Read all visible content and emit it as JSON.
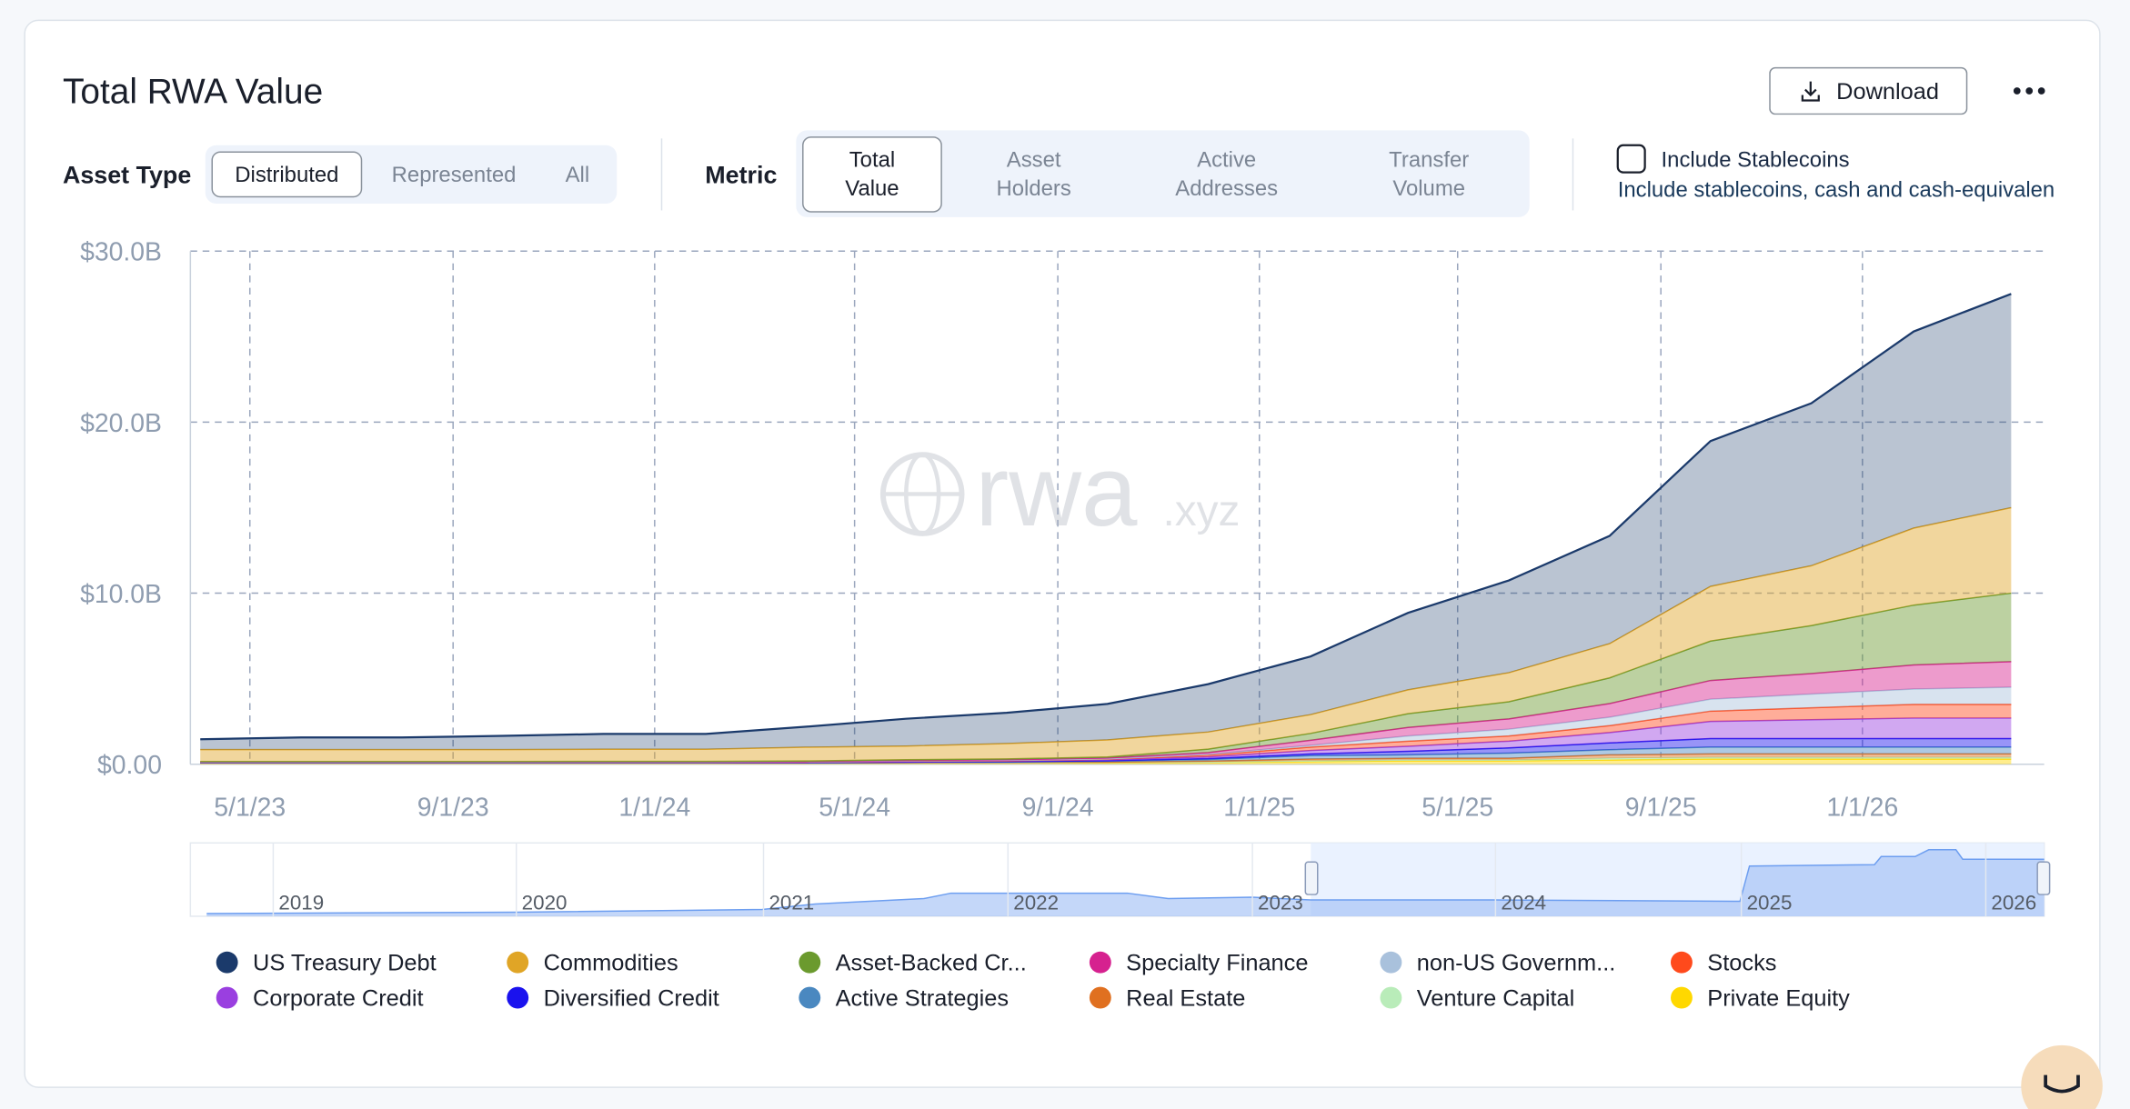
{
  "header": {
    "title": "Total RWA Value",
    "download": "Download"
  },
  "filters": {
    "asset_type_label": "Asset Type",
    "asset_type_options": [
      "Distributed",
      "Represented",
      "All"
    ],
    "metric_label": "Metric",
    "metric_options": [
      [
        "Total",
        "Value"
      ],
      [
        "Asset",
        "Holders"
      ],
      [
        "Active",
        "Addresses"
      ],
      [
        "Transfer",
        "Volume"
      ]
    ],
    "stablecoin_label": "Include Stablecoins",
    "stablecoin_note": "Include stablecoins, cash and cash-equivalen"
  },
  "watermark": {
    "main": "rwa",
    "suffix": ".xyz"
  },
  "navigator_labels": [
    "2019",
    "2020",
    "2021",
    "2022",
    "2023",
    "2024",
    "2025",
    "2026"
  ],
  "chart_data": {
    "type": "stacked_area",
    "x": [
      "2023-04-01",
      "2023-06-01",
      "2023-08-01",
      "2023-10-01",
      "2023-12-01",
      "2024-02-01",
      "2024-04-01",
      "2024-06-01",
      "2024-08-01",
      "2024-10-01",
      "2024-12-01",
      "2025-02-01",
      "2025-04-01",
      "2025-06-01",
      "2025-08-01",
      "2025-10-01",
      "2025-12-01",
      "2026-02-01",
      "2026-04-01"
    ],
    "xlim": [
      "2023-03-26",
      "2026-04-21"
    ],
    "xticks": [
      {
        "value": "2023-05-01",
        "label": "5/1/23"
      },
      {
        "value": "2023-09-01",
        "label": "9/1/23"
      },
      {
        "value": "2024-01-01",
        "label": "1/1/24"
      },
      {
        "value": "2024-05-01",
        "label": "5/1/24"
      },
      {
        "value": "2024-09-01",
        "label": "9/1/24"
      },
      {
        "value": "2025-01-01",
        "label": "1/1/25"
      },
      {
        "value": "2025-05-01",
        "label": "5/1/25"
      },
      {
        "value": "2025-09-01",
        "label": "9/1/25"
      },
      {
        "value": "2026-01-01",
        "label": "1/1/26"
      }
    ],
    "ylim": [
      0,
      30
    ],
    "yticks": [
      {
        "value": 0,
        "label": "$0.00"
      },
      {
        "value": 10,
        "label": "$10.0B"
      },
      {
        "value": 20,
        "label": "$20.0B"
      },
      {
        "value": 30,
        "label": "$30.0B"
      }
    ],
    "grid": true,
    "series": [
      {
        "name": "US Treasury Debt",
        "color": "#1b3a6b",
        "values": [
          0.6,
          0.7,
          0.7,
          0.8,
          0.9,
          0.9,
          1.2,
          1.6,
          1.8,
          2.1,
          2.8,
          3.4,
          4.5,
          5.4,
          6.3,
          8.5,
          9.5,
          11.5,
          12.5
        ]
      },
      {
        "name": "Commodities",
        "color": "#e0a526",
        "values": [
          0.7,
          0.7,
          0.7,
          0.7,
          0.7,
          0.7,
          0.8,
          0.8,
          0.9,
          1.0,
          1.0,
          1.1,
          1.4,
          1.7,
          2.0,
          3.2,
          3.5,
          4.5,
          5.0
        ]
      },
      {
        "name": "Asset-Backed Cr...",
        "color": "#6b9a2e",
        "values": [
          0.02,
          0.02,
          0.02,
          0.02,
          0.03,
          0.03,
          0.03,
          0.04,
          0.05,
          0.05,
          0.2,
          0.4,
          0.8,
          1.0,
          1.5,
          2.3,
          2.8,
          3.5,
          4.0
        ]
      },
      {
        "name": "Specialty Finance",
        "color": "#d6218f",
        "values": [
          0.01,
          0.01,
          0.01,
          0.01,
          0.01,
          0.01,
          0.02,
          0.02,
          0.03,
          0.05,
          0.1,
          0.3,
          0.5,
          0.6,
          0.8,
          1.1,
          1.2,
          1.4,
          1.5
        ]
      },
      {
        "name": "non-US Governm...",
        "color": "#a9c1dc",
        "values": [
          0.01,
          0.01,
          0.01,
          0.01,
          0.01,
          0.01,
          0.01,
          0.02,
          0.02,
          0.03,
          0.05,
          0.1,
          0.3,
          0.4,
          0.5,
          0.7,
          0.8,
          0.9,
          1.0
        ]
      },
      {
        "name": "Stocks",
        "color": "#ff4a1c",
        "values": [
          0.01,
          0.01,
          0.01,
          0.01,
          0.01,
          0.01,
          0.01,
          0.02,
          0.02,
          0.03,
          0.1,
          0.2,
          0.3,
          0.3,
          0.4,
          0.6,
          0.7,
          0.8,
          0.8
        ]
      },
      {
        "name": "Corporate Credit",
        "color": "#9a3fe0",
        "values": [
          0.02,
          0.02,
          0.02,
          0.02,
          0.02,
          0.02,
          0.03,
          0.03,
          0.04,
          0.05,
          0.1,
          0.2,
          0.3,
          0.4,
          0.6,
          1.0,
          1.1,
          1.2,
          1.2
        ]
      },
      {
        "name": "Diversified Credit",
        "color": "#1a12ee",
        "values": [
          0.01,
          0.01,
          0.01,
          0.01,
          0.01,
          0.01,
          0.01,
          0.02,
          0.02,
          0.03,
          0.05,
          0.1,
          0.2,
          0.3,
          0.4,
          0.5,
          0.5,
          0.5,
          0.5
        ]
      },
      {
        "name": "Active Strategies",
        "color": "#4a88c0",
        "values": [
          0.01,
          0.01,
          0.01,
          0.01,
          0.01,
          0.01,
          0.01,
          0.02,
          0.03,
          0.05,
          0.1,
          0.2,
          0.2,
          0.3,
          0.3,
          0.4,
          0.4,
          0.4,
          0.4
        ]
      },
      {
        "name": "Real Estate",
        "color": "#e07020",
        "values": [
          0.01,
          0.01,
          0.01,
          0.01,
          0.01,
          0.01,
          0.01,
          0.02,
          0.02,
          0.03,
          0.05,
          0.1,
          0.1,
          0.1,
          0.2,
          0.2,
          0.2,
          0.2,
          0.2
        ]
      },
      {
        "name": "Venture Capital",
        "color": "#b9ecb9",
        "values": [
          0.01,
          0.01,
          0.01,
          0.01,
          0.01,
          0.01,
          0.01,
          0.01,
          0.01,
          0.02,
          0.03,
          0.05,
          0.05,
          0.05,
          0.1,
          0.1,
          0.1,
          0.1,
          0.1
        ]
      },
      {
        "name": "Private Equity",
        "color": "#ffd800",
        "values": [
          0.05,
          0.05,
          0.05,
          0.05,
          0.05,
          0.05,
          0.05,
          0.06,
          0.07,
          0.08,
          0.1,
          0.15,
          0.2,
          0.2,
          0.25,
          0.3,
          0.3,
          0.3,
          0.3
        ]
      }
    ]
  }
}
